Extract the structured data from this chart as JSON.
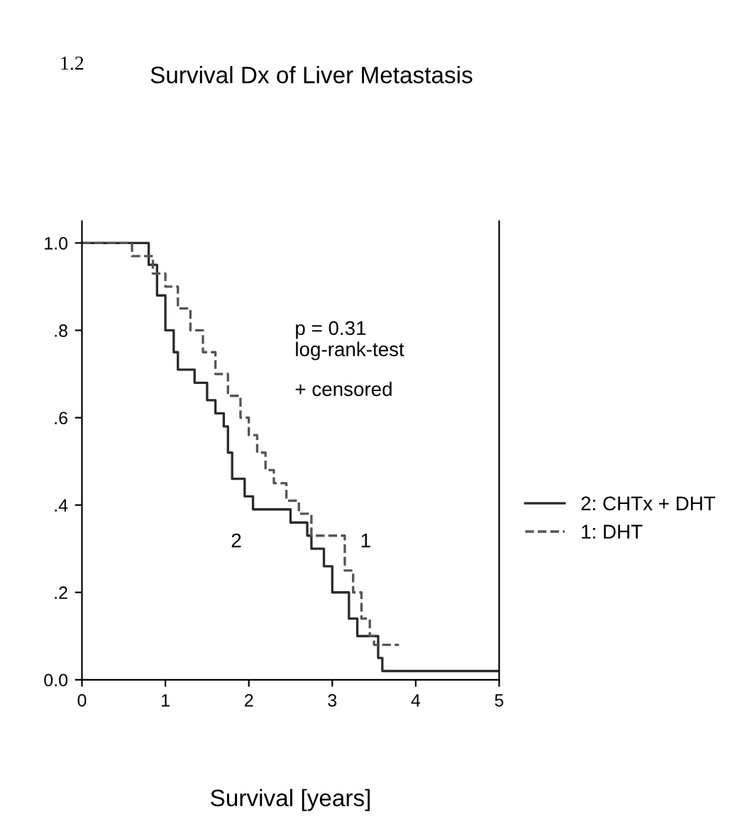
{
  "chart_data": {
    "type": "step",
    "title": "Survival Dx of Liver Metastasis",
    "xlabel": "Survival [years]",
    "xlim": [
      0,
      5
    ],
    "xticks": [
      0,
      1,
      2,
      3,
      4,
      5
    ],
    "ylim": [
      0,
      1.05
    ],
    "yticks": [
      {
        "value": 0,
        "label": "0.0"
      },
      {
        "value": 0.2,
        "label": ".2"
      },
      {
        "value": 0.4,
        "label": ".4"
      },
      {
        "value": 0.6,
        "label": ".6"
      },
      {
        "value": 0.8,
        "label": ".8"
      },
      {
        "value": 1.0,
        "label": "1.0"
      }
    ],
    "grid": false,
    "legend": "right",
    "marker": "none",
    "series": [
      {
        "name": "2: CHTx + DHT",
        "color": "#2b2b2b",
        "line_style": "solid",
        "x": [
          0,
          0.8,
          0.9,
          1.0,
          1.1,
          1.15,
          1.35,
          1.5,
          1.6,
          1.7,
          1.75,
          1.8,
          1.95,
          2.05,
          2.5,
          2.7,
          2.75,
          2.9,
          3.0,
          3.2,
          3.3,
          3.55,
          3.6,
          5
        ],
        "values": [
          1.0,
          0.95,
          0.88,
          0.8,
          0.75,
          0.71,
          0.68,
          0.64,
          0.61,
          0.58,
          0.52,
          0.46,
          0.42,
          0.39,
          0.36,
          0.33,
          0.3,
          0.26,
          0.2,
          0.14,
          0.1,
          0.05,
          0.02,
          0.02
        ]
      },
      {
        "name": "1: DHT",
        "color": "#555555",
        "line_style": "dashed",
        "x": [
          0,
          0.6,
          0.85,
          1.0,
          1.15,
          1.3,
          1.45,
          1.6,
          1.75,
          1.9,
          2.0,
          2.1,
          2.2,
          2.3,
          2.45,
          2.6,
          2.75,
          3.15,
          3.25,
          3.35,
          3.45,
          3.5,
          3.8
        ],
        "values": [
          1.0,
          0.97,
          0.93,
          0.9,
          0.85,
          0.8,
          0.75,
          0.7,
          0.65,
          0.6,
          0.56,
          0.52,
          0.48,
          0.45,
          0.41,
          0.38,
          0.33,
          0.25,
          0.2,
          0.14,
          0.1,
          0.08,
          0.08
        ]
      }
    ],
    "annotations": [
      "1.2",
      "p = 0.31\nlog-rank-test",
      "+ censored",
      "2",
      "1"
    ]
  }
}
